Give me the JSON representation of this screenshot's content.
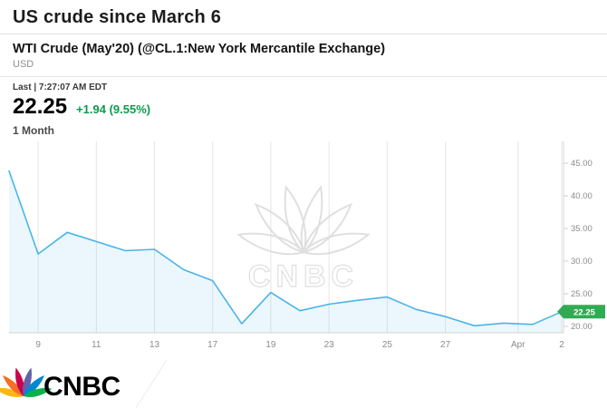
{
  "header": {
    "title": "US crude since March 6",
    "instrument": "WTI Crude (May'20) (@CL.1:New York Mercantile Exchange)",
    "currency": "USD",
    "last_line": "Last | 7:27:07 AM EDT",
    "price": "22.25",
    "change": "+1.94 (9.55%)",
    "range_label": "1 Month"
  },
  "colors": {
    "line_blue": "#49b5e7",
    "area_blue": "rgba(73,181,231,0.10)",
    "change_green": "#0c9b4d",
    "tag_green": "#31ab53",
    "grid": "#e5e5e5",
    "axis_line": "#cfcfcf",
    "axis_text": "#8c8c8c"
  },
  "chart_data": {
    "type": "line",
    "title": "US crude since March 6",
    "subtitle": "WTI Crude (May'20) (@CL.1:New York Mercantile Exchange)",
    "currency": "USD",
    "x": [
      "Mar 6",
      "Mar 9",
      "Mar 10",
      "Mar 11",
      "Mar 12",
      "Mar 13",
      "Mar 16",
      "Mar 17",
      "Mar 18",
      "Mar 19",
      "Mar 20",
      "Mar 23",
      "Mar 24",
      "Mar 25",
      "Mar 26",
      "Mar 27",
      "Mar 30",
      "Mar 31",
      "Apr 1",
      "Apr 2"
    ],
    "values": [
      43.8,
      31.1,
      34.4,
      33.0,
      31.6,
      31.8,
      28.7,
      27.0,
      20.4,
      25.2,
      22.4,
      23.4,
      24.0,
      24.5,
      22.6,
      21.5,
      20.1,
      20.5,
      20.3,
      22.25
    ],
    "last_value": "22.25",
    "x_ticks": [
      {
        "index": 1,
        "label": "9"
      },
      {
        "index": 3,
        "label": "11"
      },
      {
        "index": 5,
        "label": "13"
      },
      {
        "index": 7,
        "label": "17"
      },
      {
        "index": 9,
        "label": "19"
      },
      {
        "index": 11,
        "label": "23"
      },
      {
        "index": 13,
        "label": "25"
      },
      {
        "index": 15,
        "label": "27"
      },
      {
        "index": 17.5,
        "label": "Apr"
      },
      {
        "index": 19,
        "label": "2"
      }
    ],
    "y_ticks": [
      "45.00",
      "40.00",
      "35.00",
      "30.00",
      "25.00",
      "20.00"
    ],
    "y_range": [
      18.5,
      47.0
    ],
    "xlabel": "",
    "ylabel": "USD",
    "legend": "none",
    "grid": "vertical-only"
  },
  "watermark": {
    "text": "CNBC"
  },
  "footer": {
    "logo_text": "CNBC"
  }
}
